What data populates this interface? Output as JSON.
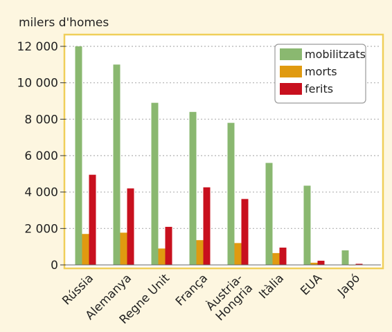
{
  "chart_data": {
    "type": "bar",
    "ylabel": "milers d'homes",
    "categories": [
      "Rússia",
      "Alemanya",
      "Regne Unit",
      "França",
      "Àustria-Hongria",
      "Itàlia",
      "EUA",
      "Japó"
    ],
    "category_lines": [
      [
        "Rússia"
      ],
      [
        "Alemanya"
      ],
      [
        "Regne Unit"
      ],
      [
        "França"
      ],
      [
        "Àustria-",
        "Hongria"
      ],
      [
        "Itàlia"
      ],
      [
        "EUA"
      ],
      [
        "Japó"
      ]
    ],
    "series": [
      {
        "name": "mobilitzats",
        "color": "#8ab870",
        "values": [
          12000,
          11000,
          8900,
          8400,
          7800,
          5600,
          4350,
          800
        ]
      },
      {
        "name": "morts",
        "color": "#e09a10",
        "values": [
          1700,
          1770,
          900,
          1360,
          1200,
          650,
          120,
          5
        ]
      },
      {
        "name": "ferits",
        "color": "#c8101e",
        "values": [
          4950,
          4200,
          2090,
          4260,
          3620,
          950,
          230,
          60
        ]
      }
    ],
    "ylim": [
      0,
      12000
    ],
    "yticks": [
      0,
      2000,
      4000,
      6000,
      8000,
      10000,
      12000
    ],
    "ytick_labels": [
      "0",
      "2 000",
      "4 000",
      "6 000",
      "8 000",
      "10 000",
      "12 000"
    ],
    "grid": true,
    "legend_position": "top-right",
    "colors": {
      "background": "#fdf6e0",
      "plot_background": "#ffffff",
      "frame": "#f0cf5a",
      "grid": "#b0b0b0"
    }
  }
}
